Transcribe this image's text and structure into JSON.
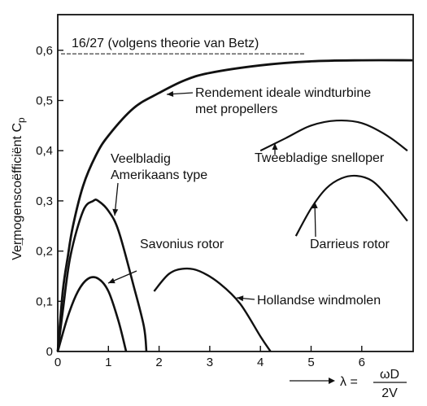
{
  "chart_data": {
    "type": "line",
    "xlabel": "λ =",
    "x_frac": {
      "num": "ωD",
      "den": "2V"
    },
    "ylabel_main": "Vermogenscoëfficiënt C",
    "ylabel_sub": "p",
    "ylabel_arrow": "→",
    "xlim": [
      0,
      7
    ],
    "ylim": [
      0,
      0.68
    ],
    "x_ticks": [
      0,
      1,
      2,
      3,
      4,
      5,
      6
    ],
    "x_tick_labels": [
      "0",
      "1",
      "2",
      "3",
      "4",
      "5",
      "6"
    ],
    "y_ticks": [
      0,
      0.1,
      0.2,
      0.3,
      0.4,
      0.5,
      0.6
    ],
    "y_tick_labels": [
      "0",
      "0,1",
      "0,2",
      "0,3",
      "0,4",
      "0,5",
      "0,6"
    ],
    "grid": false,
    "betz": {
      "value": 0.593,
      "label": "16/27 (volgens theorie van Betz)"
    },
    "series": [
      {
        "label": [
          "Rendement ideale windturbine",
          "met propellers"
        ],
        "x": [
          0,
          0.1,
          0.2,
          0.3,
          0.5,
          0.75,
          1.0,
          1.5,
          2.0,
          2.5,
          3.0,
          4.0,
          5.0,
          6.0,
          7.0
        ],
        "y": [
          0,
          0.12,
          0.19,
          0.25,
          0.33,
          0.39,
          0.43,
          0.485,
          0.515,
          0.54,
          0.555,
          0.57,
          0.578,
          0.58,
          0.58
        ]
      },
      {
        "label": [
          "Veelbladig",
          "Amerikaans type"
        ],
        "x": [
          0,
          0.1,
          0.25,
          0.5,
          0.7,
          0.8,
          1.0,
          1.2,
          1.5,
          1.7,
          1.75
        ],
        "y": [
          0,
          0.08,
          0.19,
          0.28,
          0.3,
          0.3,
          0.28,
          0.24,
          0.13,
          0.05,
          0
        ]
      },
      {
        "label": [
          "Savonius rotor"
        ],
        "x": [
          0,
          0.2,
          0.4,
          0.6,
          0.8,
          1.0,
          1.2,
          1.35
        ],
        "y": [
          0,
          0.07,
          0.12,
          0.145,
          0.145,
          0.12,
          0.06,
          0
        ]
      },
      {
        "label": [
          "Hollandse windmolen"
        ],
        "x": [
          1.9,
          2.2,
          2.5,
          2.8,
          3.2,
          3.6,
          4.0,
          4.2
        ],
        "y": [
          0.12,
          0.155,
          0.165,
          0.16,
          0.135,
          0.095,
          0.03,
          0
        ]
      },
      {
        "label": [
          "Tweebladige snelloper"
        ],
        "x": [
          4.0,
          4.5,
          5.0,
          5.5,
          6.0,
          6.5,
          6.9
        ],
        "y": [
          0.4,
          0.425,
          0.45,
          0.46,
          0.455,
          0.43,
          0.4
        ]
      },
      {
        "label": [
          "Darrieus rotor"
        ],
        "x": [
          4.7,
          5.0,
          5.3,
          5.6,
          5.9,
          6.2,
          6.5,
          6.9
        ],
        "y": [
          0.23,
          0.285,
          0.325,
          0.345,
          0.35,
          0.34,
          0.31,
          0.26
        ]
      }
    ]
  }
}
